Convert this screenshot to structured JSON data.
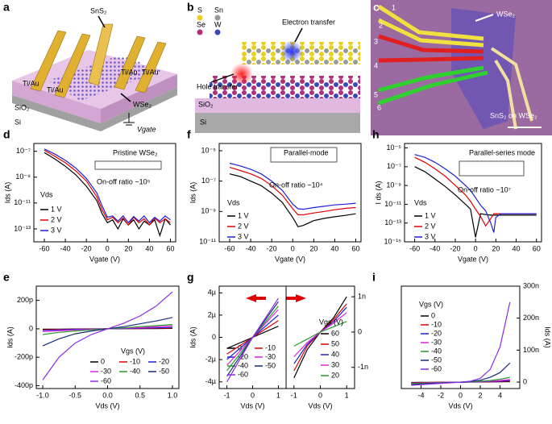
{
  "panel_a": {
    "label": "a",
    "texts": [
      "SnS₂",
      "Ti/Au",
      "Ti/Au",
      "Ti/Au",
      "Ti/Au",
      "SiO₂",
      "Si",
      "WSe₂",
      "Vgate"
    ]
  },
  "panel_b": {
    "label": "b",
    "texts": [
      "S",
      "Sn",
      "Se",
      "W",
      "Electron transfer",
      "Hole transfer",
      "SiO₂",
      "Si"
    ]
  },
  "panel_c": {
    "label": "c",
    "texts": [
      "1",
      "2",
      "3",
      "4",
      "5",
      "6",
      "WSe₂",
      "SnS₂ on WSe₂"
    ]
  },
  "chart_data": [
    {
      "type": "line",
      "panel": "d",
      "ylog": true,
      "xlabel": "Vgate (V)",
      "ylabel": "Ids (A)",
      "annotations": [
        {
          "text": "Pristine WSe₂",
          "color": "#000000"
        },
        {
          "text": "On-off ratio ~10⁵",
          "color": "#e00000"
        }
      ],
      "legend_title": "Vds",
      "x": [
        -60,
        -50,
        -40,
        -30,
        -20,
        -10,
        -5,
        0,
        5,
        10,
        15,
        20,
        25,
        30,
        35,
        40,
        45,
        50,
        55,
        60
      ],
      "series": [
        {
          "name": "1 V",
          "color": "#000000",
          "values": [
            8e-08,
            2.5e-08,
            7e-09,
            1.5e-09,
            2e-10,
            1.5e-11,
            1.5e-12,
            3e-13,
            5e-13,
            1e-13,
            6e-13,
            2e-13,
            5e-13,
            1e-13,
            4e-13,
            2e-13,
            5e-13,
            3e-14,
            6e-13,
            2e-13
          ]
        },
        {
          "name": "2 V",
          "color": "#e00000",
          "values": [
            1.2e-07,
            4e-08,
            1.3e-08,
            3e-09,
            5e-10,
            3e-11,
            3e-12,
            5e-13,
            8e-13,
            3e-13,
            7e-13,
            2e-13,
            8e-13,
            3e-13,
            6e-13,
            2e-13,
            7e-13,
            3e-13,
            6e-13,
            3e-13
          ]
        },
        {
          "name": "3 V",
          "color": "#2020d0",
          "values": [
            1.5e-07,
            6e-08,
            2e-08,
            5e-09,
            8e-10,
            6e-11,
            6e-12,
            8e-13,
            1e-12,
            4e-13,
            1e-12,
            3e-13,
            9e-13,
            4e-13,
            1e-12,
            3e-13,
            8e-13,
            4e-13,
            1e-12,
            5e-13
          ]
        }
      ],
      "xlim": [
        -70,
        65
      ],
      "xticks": [
        -60,
        -40,
        -20,
        0,
        20,
        40,
        60
      ],
      "ylim": [
        1e-14,
        4e-07
      ],
      "yticks": [
        {
          "value": 1e-07,
          "label": "10⁻⁷"
        },
        {
          "value": 1e-09,
          "label": "10⁻⁹"
        },
        {
          "value": 1e-11,
          "label": "10⁻¹¹"
        },
        {
          "value": 1e-13,
          "label": "10⁻¹³"
        }
      ]
    },
    {
      "type": "line",
      "panel": "f",
      "ylog": true,
      "xlabel": "Vgate (V)",
      "ylabel": "Ids (A)",
      "annotations": [
        {
          "text": "Parallel-mode",
          "color": "#000000"
        },
        {
          "text": "On-off ratio ~10⁴",
          "color": "#e00000"
        }
      ],
      "legend_title": "Vds",
      "x": [
        -60,
        -50,
        -40,
        -30,
        -20,
        -10,
        0,
        5,
        10,
        20,
        30,
        40,
        50,
        60
      ],
      "series": [
        {
          "name": "1 V",
          "color": "#000000",
          "values": [
            3e-07,
            2e-07,
            1e-07,
            5e-08,
            1.6e-08,
            4e-09,
            4e-10,
            1e-10,
            1.2e-10,
            2.5e-10,
            3.5e-10,
            4.5e-10,
            5.5e-10,
            7e-10
          ]
        },
        {
          "name": "2 V",
          "color": "#e00000",
          "values": [
            8e-07,
            5e-07,
            3e-07,
            1.5e-07,
            5e-08,
            1.2e-08,
            1.5e-09,
            6e-10,
            6e-10,
            8e-10,
            1e-09,
            1.3e-09,
            1.6e-09,
            1.8e-09
          ]
        },
        {
          "name": "3 V",
          "color": "#2020d0",
          "values": [
            1.5e-06,
            1e-06,
            6e-07,
            3e-07,
            1e-07,
            2.5e-08,
            3e-09,
            1.5e-09,
            1.4e-09,
            1.8e-09,
            2.2e-09,
            2.7e-09,
            3e-09,
            3.5e-09
          ]
        }
      ],
      "xlim": [
        -70,
        65
      ],
      "xticks": [
        -60,
        -40,
        -20,
        0,
        20,
        40,
        60
      ],
      "ylim": [
        1e-11,
        3e-05
      ],
      "yticks": [
        {
          "value": 1e-05,
          "label": "10⁻⁵"
        },
        {
          "value": 1e-07,
          "label": "10⁻⁷"
        },
        {
          "value": 1e-09,
          "label": "10⁻⁹"
        },
        {
          "value": 1e-11,
          "label": "10⁻¹¹"
        }
      ]
    },
    {
      "type": "line",
      "panel": "h",
      "ylog": true,
      "xlabel": "Vgate (V)",
      "ylabel": "I ds (A)",
      "annotations": [
        {
          "text": "Parallel-series mode",
          "color": "#000000"
        },
        {
          "text": "On-off ratio ~10⁷",
          "color": "#e00000"
        }
      ],
      "legend_title": "Vds",
      "x": [
        -60,
        -50,
        -40,
        -30,
        -20,
        -10,
        -5,
        0,
        5,
        10,
        15,
        18,
        20,
        25,
        30,
        40,
        50,
        60
      ],
      "series": [
        {
          "name": "1 V",
          "color": "#000000",
          "values": [
            1e-07,
            3e-08,
            5e-09,
            8e-10,
            1e-10,
            1e-11,
            3e-12,
            3e-15,
            1e-12,
            8e-13,
            7e-13,
            7e-13,
            7e-13,
            7e-13,
            7e-13,
            7e-13,
            7e-13,
            7e-13
          ]
        },
        {
          "name": "2 V",
          "color": "#e00000",
          "values": [
            1e-06,
            3e-07,
            6e-08,
            1e-08,
            1e-09,
            1e-10,
            2e-11,
            3e-12,
            5e-13,
            5e-14,
            3e-13,
            1e-12,
            1e-12,
            1e-12,
            1e-12,
            1e-12,
            1e-12,
            1e-12
          ]
        },
        {
          "name": "3 V",
          "color": "#2020d0",
          "values": [
            2e-06,
            1e-06,
            3e-07,
            6e-08,
            1e-08,
            1e-09,
            3e-10,
            5e-11,
            8e-12,
            2e-12,
            1e-13,
            1e-14,
            4e-13,
            1e-12,
            1e-12,
            1e-12,
            1e-12,
            1e-12
          ]
        }
      ],
      "xlim": [
        -70,
        65
      ],
      "xticks": [
        -60,
        -40,
        -20,
        0,
        20,
        40,
        60
      ],
      "ylim": [
        1e-15,
        3e-05
      ],
      "yticks": [
        {
          "value": 1e-05,
          "label": "10⁻⁵"
        },
        {
          "value": 1e-07,
          "label": "10⁻⁷"
        },
        {
          "value": 1e-09,
          "label": "10⁻⁹"
        },
        {
          "value": 1e-11,
          "label": "10⁻¹¹"
        },
        {
          "value": 1e-13,
          "label": "10⁻¹³"
        },
        {
          "value": 1e-15,
          "label": "10⁻¹⁵"
        }
      ]
    },
    {
      "type": "line",
      "panel": "e",
      "ylog": false,
      "xlabel": "Vds (V)",
      "ylabel": "Ids (A)",
      "annotations": [],
      "legend_title": "Vgs (V)",
      "x": [
        -1,
        -0.75,
        -0.5,
        -0.25,
        0,
        0.25,
        0.5,
        0.75,
        1
      ],
      "series": [
        {
          "name": "0",
          "color": "#000000",
          "values": [
            -3e-12,
            -2e-12,
            -1e-12,
            -5e-13,
            0,
            5e-13,
            1e-12,
            2e-12,
            3e-12
          ]
        },
        {
          "name": "-10",
          "color": "#e00000",
          "values": [
            -6e-12,
            -4e-12,
            -2e-12,
            -1e-12,
            0,
            1e-12,
            2e-12,
            4e-12,
            6e-12
          ]
        },
        {
          "name": "-20",
          "color": "#2020d0",
          "values": [
            -1e-11,
            -7e-12,
            -4e-12,
            -2e-12,
            0,
            2e-12,
            4e-12,
            7e-12,
            1e-11
          ]
        },
        {
          "name": "-30",
          "color": "#e020e0",
          "values": [
            -2e-11,
            -1.4e-11,
            -8e-12,
            -4e-12,
            0,
            4e-12,
            8e-12,
            1.4e-11,
            2e-11
          ]
        },
        {
          "name": "-40",
          "color": "#2a9a2a",
          "values": [
            -4e-11,
            -2.5e-11,
            -1.5e-11,
            -7e-12,
            0,
            7e-12,
            1.5e-11,
            2.2e-11,
            3e-11
          ]
        },
        {
          "name": "-50",
          "color": "#1a2a7a",
          "values": [
            -1.2e-10,
            -7e-11,
            -3.5e-11,
            -1.5e-11,
            0,
            1.5e-11,
            3.5e-11,
            5.5e-11,
            8e-11
          ]
        },
        {
          "name": "-60",
          "color": "#8a2be2",
          "values": [
            -3.6e-10,
            -2e-10,
            -1e-10,
            -4e-11,
            0,
            4e-11,
            9e-11,
            1.6e-10,
            2.6e-10
          ]
        }
      ],
      "xlim": [
        -1.1,
        1.1
      ],
      "xticks": [
        {
          "value": -1,
          "label": "-1.0"
        },
        {
          "value": -0.5,
          "label": "-0.5"
        },
        {
          "value": 0,
          "label": "0.0"
        },
        {
          "value": 0.5,
          "label": "0.5"
        },
        {
          "value": 1,
          "label": "1.0"
        }
      ],
      "ylim": [
        -4.2e-10,
        3e-10
      ],
      "yticks": [
        {
          "value": -4e-10,
          "label": "-400p"
        },
        {
          "value": -2e-10,
          "label": "-200p"
        },
        0,
        {
          "value": 2e-10,
          "label": "200p"
        }
      ]
    },
    {
      "type": "line",
      "panel": "g",
      "ylog": false,
      "xlabel": "Vds (V)",
      "ylabel": "Ids (A)",
      "annotations": [],
      "legend_title": null,
      "x": [
        -1,
        0,
        1
      ],
      "series": [
        {
          "name": "0",
          "color": "#000000",
          "values": [
            -1e-06,
            0,
            1e-06
          ]
        },
        {
          "name": "-10",
          "color": "#e00000",
          "values": [
            -1.5e-06,
            0,
            1.5e-06
          ]
        },
        {
          "name": "-20",
          "color": "#2020d0",
          "values": [
            -2e-06,
            0,
            2e-06
          ]
        },
        {
          "name": "-30",
          "color": "#e020e0",
          "values": [
            -2.5e-06,
            0,
            2.5e-06
          ]
        },
        {
          "name": "-40",
          "color": "#2a9a2a",
          "values": [
            -3e-06,
            0,
            2.8e-06
          ]
        },
        {
          "name": "-50",
          "color": "#1a2a7a",
          "values": [
            -3.5e-06,
            0,
            3.2e-06
          ]
        },
        {
          "name": "-60",
          "color": "#8a2be2",
          "values": [
            -4e-06,
            0,
            3.5e-06
          ]
        }
      ],
      "xlim": [
        -1.3,
        1.3
      ],
      "xticks": [
        -1,
        0,
        1
      ],
      "ylim": [
        -4.6e-06,
        4.6e-06
      ],
      "yticks": [
        {
          "value": -4e-06,
          "label": "-4µ"
        },
        {
          "value": -2e-06,
          "label": "-2µ"
        },
        0,
        {
          "value": 2e-06,
          "label": "2µ"
        },
        {
          "value": 4e-06,
          "label": "4µ"
        }
      ]
    },
    {
      "type": "line",
      "ylog": false,
      "y_axis_side": "right",
      "xlabel": "Vds (V)",
      "annotations": [],
      "legend_title": "Vgs (V)",
      "x": [
        -1,
        -0.5,
        0,
        0.5,
        1
      ],
      "series": [
        {
          "name": "60",
          "color": "#000000",
          "values": [
            -1.3e-09,
            -5e-10,
            0,
            4e-10,
            1e-09
          ]
        },
        {
          "name": "50",
          "color": "#e00000",
          "values": [
            -1.1e-09,
            -4e-10,
            0,
            3.5e-10,
            8e-10
          ]
        },
        {
          "name": "40",
          "color": "#2020d0",
          "values": [
            -9e-10,
            -3.5e-10,
            0,
            3e-10,
            7e-10
          ]
        },
        {
          "name": "30",
          "color": "#e020e0",
          "values": [
            -7e-10,
            -3e-10,
            0,
            2.5e-10,
            5.5e-10
          ]
        },
        {
          "name": "20",
          "color": "#2a9a2a",
          "values": [
            -4e-10,
            -2e-10,
            0,
            1.5e-10,
            3e-10
          ]
        }
      ],
      "xlim": [
        -1.3,
        1.3
      ],
      "xticks": [
        -1,
        0,
        1
      ],
      "ylim": [
        -1.6e-09,
        1.3e-09
      ],
      "yticks": [
        {
          "value": 1e-09,
          "label": "1n"
        },
        0,
        {
          "value": -1e-09,
          "label": "-1n"
        }
      ]
    },
    {
      "type": "line",
      "panel": "i",
      "ylog": false,
      "y_axis_side": "right",
      "xlabel": "Vds (V)",
      "ylabel": "Ids (A)",
      "annotations": [],
      "legend_title": "Vgs (V)",
      "x": [
        -5,
        -4,
        -3,
        -2,
        -1,
        0,
        1,
        2,
        3,
        4,
        5
      ],
      "series": [
        {
          "name": "0",
          "color": "#000000",
          "values": [
            -1e-09,
            -8e-10,
            -6e-10,
            -4e-10,
            -2e-10,
            0,
            2e-10,
            4e-10,
            6e-10,
            1e-09,
            1.5e-09
          ]
        },
        {
          "name": "-10",
          "color": "#e00000",
          "values": [
            -2e-09,
            -1.6e-09,
            -1.2e-09,
            -8e-10,
            -4e-10,
            0,
            4e-10,
            8e-10,
            1.2e-09,
            2e-09,
            3e-09
          ]
        },
        {
          "name": "-20",
          "color": "#2020d0",
          "values": [
            -3e-09,
            -2.5e-09,
            -2e-09,
            -1e-09,
            -5e-10,
            0,
            5e-10,
            1e-09,
            2e-09,
            3e-09,
            5e-09
          ]
        },
        {
          "name": "-30",
          "color": "#e020e0",
          "values": [
            -4e-09,
            -3e-09,
            -2e-09,
            -1.5e-09,
            -7e-10,
            0,
            7e-10,
            2e-09,
            3e-09,
            5e-09,
            8e-09
          ]
        },
        {
          "name": "-40",
          "color": "#2a9a2a",
          "values": [
            -5e-09,
            -4e-09,
            -3e-09,
            -2e-09,
            -1e-09,
            0,
            1e-09,
            3e-09,
            5e-09,
            9e-09,
            1.5e-08
          ]
        },
        {
          "name": "-50",
          "color": "#1a2a7a",
          "values": [
            -8e-09,
            -6e-09,
            -4e-09,
            -3e-09,
            -1e-09,
            0,
            2e-09,
            6e-09,
            1.5e-08,
            3e-08,
            6e-08
          ]
        },
        {
          "name": "-60",
          "color": "#8a2be2",
          "values": [
            -1e-08,
            -8e-09,
            -6e-09,
            -4e-09,
            -2e-09,
            0,
            3e-09,
            1.2e-08,
            4e-08,
            1.1e-07,
            2.5e-07
          ]
        }
      ],
      "xlim": [
        -6,
        6
      ],
      "xticks": [
        -4,
        -2,
        0,
        2,
        4
      ],
      "ylim": [
        -2e-08,
        3e-07
      ],
      "yticks": [
        0,
        {
          "value": 1e-07,
          "label": "100n"
        },
        {
          "value": 2e-07,
          "label": "200n"
        },
        {
          "value": 3e-07,
          "label": "300n"
        }
      ]
    }
  ]
}
